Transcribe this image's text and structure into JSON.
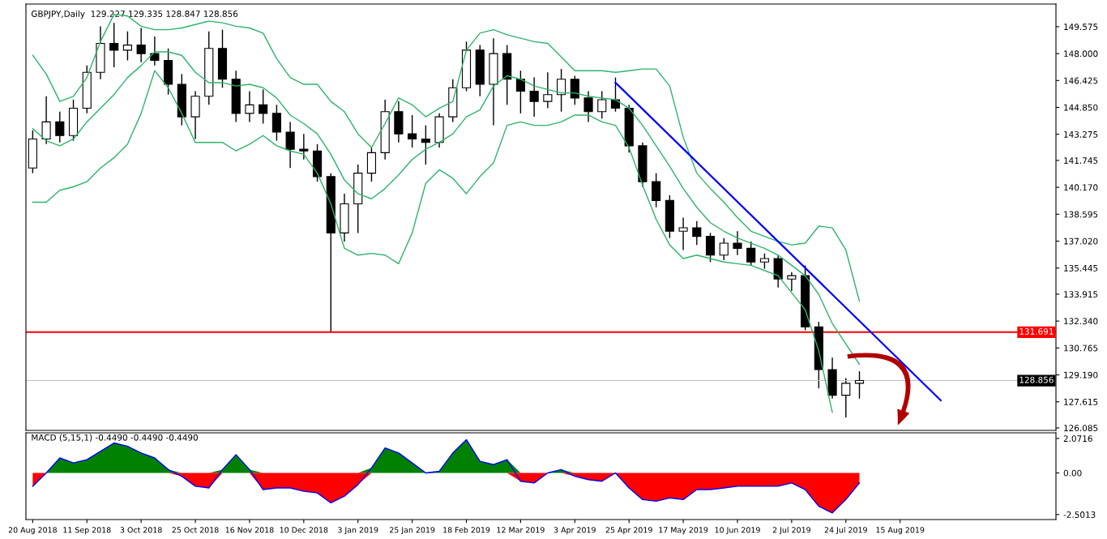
{
  "chart_data": [
    {
      "type": "candlestick",
      "title": "GBPJPY,Daily  129.227 129.335 128.847 128.856",
      "tick_labels": "y",
      "categories": [
        null,
        null,
        null,
        null,
        null,
        null,
        null,
        null,
        null,
        null,
        null,
        null,
        null,
        null,
        null,
        null,
        null,
        null,
        null,
        null,
        null,
        null,
        null,
        null,
        null,
        null,
        null,
        null,
        null,
        null,
        null,
        null,
        null,
        null,
        null,
        null,
        null,
        null,
        null,
        null,
        null,
        null,
        null,
        null,
        null,
        null,
        null,
        null,
        null,
        null,
        null,
        null,
        null,
        null,
        null,
        null,
        null,
        null,
        null,
        null,
        null,
        null,
        null,
        null,
        null,
        null,
        null,
        null,
        null,
        null,
        null,
        null,
        null,
        null,
        null,
        null
      ],
      "ohlc": [
        [
          141.3,
          143.5,
          141.0,
          143.0
        ],
        [
          143.0,
          145.5,
          142.7,
          144.0
        ],
        [
          144.0,
          144.6,
          142.8,
          143.2
        ],
        [
          143.2,
          145.3,
          142.9,
          144.8
        ],
        [
          144.8,
          147.3,
          144.5,
          146.9
        ],
        [
          146.9,
          149.6,
          146.5,
          148.6
        ],
        [
          148.6,
          149.8,
          147.2,
          148.2
        ],
        [
          148.2,
          149.3,
          147.6,
          148.5
        ],
        [
          148.5,
          149.5,
          147.5,
          148.0
        ],
        [
          148.0,
          149.0,
          147.3,
          147.6
        ],
        [
          147.6,
          148.3,
          145.6,
          146.2
        ],
        [
          146.2,
          146.8,
          143.8,
          144.3
        ],
        [
          144.3,
          145.8,
          143.0,
          145.5
        ],
        [
          145.5,
          149.3,
          145.0,
          148.3
        ],
        [
          148.3,
          149.4,
          146.0,
          146.5
        ],
        [
          146.5,
          147.0,
          144.0,
          144.5
        ],
        [
          144.5,
          145.8,
          144.0,
          145.0
        ],
        [
          145.0,
          145.9,
          143.9,
          144.5
        ],
        [
          144.5,
          145.0,
          142.9,
          143.4
        ],
        [
          143.4,
          144.0,
          141.3,
          142.4
        ],
        [
          142.4,
          143.3,
          141.8,
          142.3
        ],
        [
          142.3,
          142.7,
          140.5,
          140.8
        ],
        [
          140.8,
          141.0,
          131.691,
          137.5
        ],
        [
          137.5,
          139.8,
          137.0,
          139.2
        ],
        [
          139.2,
          141.5,
          137.5,
          141.0
        ],
        [
          141.0,
          142.5,
          140.5,
          142.2
        ],
        [
          142.2,
          145.3,
          141.8,
          144.6
        ],
        [
          144.6,
          145.2,
          142.8,
          143.3
        ],
        [
          143.3,
          144.4,
          142.5,
          143.0
        ],
        [
          143.0,
          143.8,
          141.5,
          142.8
        ],
        [
          142.8,
          144.5,
          142.5,
          144.3
        ],
        [
          144.3,
          146.5,
          144.0,
          146.0
        ],
        [
          146.0,
          148.7,
          145.8,
          148.2
        ],
        [
          148.2,
          148.5,
          145.5,
          146.2
        ],
        [
          146.2,
          148.9,
          143.8,
          148.0
        ],
        [
          148.0,
          148.5,
          145.0,
          146.5
        ],
        [
          146.5,
          147.0,
          144.5,
          145.8
        ],
        [
          145.8,
          146.6,
          144.3,
          145.2
        ],
        [
          145.2,
          146.9,
          144.8,
          145.6
        ],
        [
          145.6,
          147.1,
          144.6,
          146.5
        ],
        [
          146.5,
          146.7,
          145.0,
          145.4
        ],
        [
          145.4,
          145.8,
          144.0,
          144.6
        ],
        [
          144.6,
          145.8,
          144.2,
          145.3
        ],
        [
          145.3,
          146.6,
          144.6,
          144.8
        ],
        [
          144.8,
          145.0,
          142.2,
          142.6
        ],
        [
          142.6,
          142.8,
          140.2,
          140.5
        ],
        [
          140.5,
          141.0,
          139.0,
          139.4
        ],
        [
          139.4,
          139.7,
          137.2,
          137.6
        ],
        [
          137.6,
          138.4,
          136.5,
          137.8
        ],
        [
          137.8,
          138.2,
          136.8,
          137.3
        ],
        [
          137.3,
          137.5,
          135.8,
          136.2
        ],
        [
          136.2,
          137.2,
          135.9,
          136.9
        ],
        [
          136.9,
          137.6,
          136.2,
          136.6
        ],
        [
          136.6,
          137.0,
          135.6,
          135.8
        ],
        [
          135.8,
          136.3,
          135.4,
          136.0
        ],
        [
          136.0,
          136.2,
          134.3,
          134.8
        ],
        [
          134.8,
          135.2,
          134.1,
          135.0
        ],
        [
          135.0,
          135.6,
          131.8,
          132.0
        ],
        [
          132.0,
          132.3,
          128.4,
          129.5
        ],
        [
          129.5,
          130.2,
          127.8,
          128.0
        ],
        [
          128.0,
          129.0,
          126.7,
          128.7
        ],
        [
          128.7,
          129.4,
          127.8,
          128.856
        ],
        null,
        null,
        null,
        null,
        null,
        null,
        null,
        null,
        null,
        null,
        null,
        null,
        null,
        null
      ],
      "series": [
        {
          "type": "line",
          "color": "#2db36b",
          "values": [
            147.9,
            146.8,
            145.2,
            145.5,
            146.6,
            148.7,
            150.3,
            150.2,
            149.6,
            149.4,
            149.4,
            149.5,
            149.7,
            149.9,
            149.8,
            149.6,
            149.5,
            149.2,
            147.7,
            146.6,
            146.2,
            146.2,
            145.2,
            144.6,
            143.3,
            142.5,
            143.9,
            145.4,
            145.0,
            144.3,
            144.8,
            145.2,
            148.2,
            149.2,
            149.4,
            149.1,
            148.9,
            148.7,
            148.6,
            147.8,
            147.0,
            147.0,
            147.0,
            146.9,
            147.0,
            147.1,
            147.1,
            146.1,
            143.1,
            141.0,
            140.1,
            139.3,
            138.4,
            137.6,
            137.3,
            137.0,
            136.8,
            136.9,
            137.9,
            137.8,
            136.5,
            133.5,
            null,
            null,
            null,
            null,
            null,
            null,
            null,
            null,
            null,
            null,
            null,
            null,
            null,
            null
          ]
        },
        {
          "type": "line",
          "color": "#2db36b",
          "values": [
            143.6,
            142.9,
            142.6,
            143.0,
            144.0,
            144.8,
            145.6,
            146.6,
            147.3,
            148.1,
            148.1,
            147.9,
            146.9,
            146.3,
            146.3,
            146.1,
            146.2,
            146.0,
            145.4,
            144.4,
            143.9,
            143.3,
            142.1,
            140.6,
            139.8,
            139.5,
            140.1,
            140.9,
            141.8,
            142.4,
            142.8,
            143.3,
            144.3,
            144.7,
            146.1,
            146.7,
            146.5,
            146.1,
            145.9,
            145.7,
            145.7,
            145.5,
            145.4,
            145.3,
            144.8,
            143.8,
            142.6,
            141.4,
            140.1,
            139.0,
            138.1,
            137.6,
            137.2,
            136.9,
            136.6,
            136.2,
            135.6,
            135.0,
            133.9,
            132.2,
            131.0,
            129.8,
            null,
            null,
            null,
            null,
            null,
            null,
            null,
            null,
            null,
            null,
            null,
            null,
            null,
            null
          ]
        },
        {
          "type": "line",
          "color": "#2db36b",
          "values": [
            139.3,
            139.3,
            140.0,
            140.2,
            140.5,
            141.3,
            141.9,
            142.7,
            144.5,
            147.0,
            146.0,
            144.5,
            142.8,
            142.8,
            142.8,
            142.3,
            142.7,
            143.2,
            142.6,
            142.3,
            142.1,
            141.0,
            139.2,
            136.6,
            136.2,
            136.3,
            136.2,
            135.7,
            137.5,
            140.4,
            141.2,
            140.7,
            139.8,
            140.8,
            141.6,
            143.8,
            144.0,
            143.8,
            143.8,
            144.0,
            144.4,
            144.4,
            144.0,
            143.8,
            142.5,
            140.3,
            138.3,
            136.8,
            136.0,
            136.2,
            136.0,
            135.8,
            135.7,
            135.6,
            135.3,
            135.0,
            134.0,
            133.0,
            130.6,
            127.0,
            null,
            null,
            null,
            null,
            null,
            null,
            null,
            null,
            null,
            null,
            null,
            null,
            null,
            null,
            null,
            null
          ]
        },
        {
          "type": "line",
          "color": "#0000ff",
          "values": [
            null,
            null,
            null,
            null,
            null,
            null,
            null,
            null,
            null,
            null,
            null,
            null,
            null,
            null,
            null,
            null,
            null,
            null,
            null,
            null,
            null,
            null,
            null,
            null,
            null,
            null,
            null,
            null,
            null,
            null,
            null,
            null,
            null,
            null,
            null,
            null,
            null,
            null,
            null,
            null,
            null,
            null,
            null,
            146.3,
            null,
            null,
            null,
            null,
            null,
            null,
            null,
            null,
            null,
            null,
            null,
            null,
            null,
            null,
            null,
            null,
            null,
            null,
            null,
            null,
            null,
            null,
            null,
            127.7,
            null,
            null,
            null,
            null,
            null,
            null,
            null,
            null
          ]
        }
      ],
      "ylim": [
        125.94,
        150.9
      ],
      "yticks": [
        149.575,
        {
          "value": 148,
          "label": "148.000"
        },
        146.425,
        {
          "value": 144.85,
          "label": "144.850"
        },
        143.275,
        141.745,
        {
          "value": 140.17,
          "label": "140.170"
        },
        138.595,
        {
          "value": 137.02,
          "label": "137.020"
        },
        135.445,
        133.915,
        {
          "value": 132.34,
          "label": "132.340"
        },
        130.765,
        {
          "value": 129.19,
          "label": "129.190"
        },
        127.615,
        126.085
      ],
      "ref_lines": [
        {
          "axis": "y",
          "value": 131.691,
          "label": "131.691",
          "color": "#ff0000"
        },
        {
          "axis": "y",
          "value": 128.856,
          "label": "128.856",
          "color": "#c0c0c0"
        }
      ]
    },
    {
      "type": "area",
      "title": "MACD (5,15,1) -0.4490 -0.4490 -0.4490",
      "categories": [
        "20 Aug 2018",
        null,
        null,
        null,
        "11 Sep 2018",
        null,
        null,
        null,
        "3 Oct 2018",
        null,
        null,
        null,
        "25 Oct 2018",
        null,
        null,
        null,
        "16 Nov 2018",
        null,
        null,
        null,
        "10 Dec 2018",
        null,
        null,
        null,
        "3 Jan 2019",
        null,
        null,
        null,
        "25 Jan 2019",
        null,
        null,
        null,
        "18 Feb 2019",
        null,
        null,
        null,
        "12 Mar 2019",
        null,
        null,
        null,
        "3 Apr 2019",
        null,
        null,
        null,
        "25 Apr 2019",
        null,
        null,
        null,
        "17 May 2019",
        null,
        null,
        null,
        "10 Jun 2019",
        null,
        null,
        null,
        "2 Jul 2019",
        null,
        null,
        null,
        "24 Jul 2019",
        null,
        null,
        null,
        "15 Aug 2019",
        null,
        null,
        null,
        null,
        null,
        null,
        null,
        null,
        null,
        null,
        null
      ],
      "series": [
        {
          "type": "area",
          "color": "#008000",
          "values": [
            0,
            0,
            0.9,
            0.6,
            0.8,
            1.3,
            1.8,
            1.6,
            1.2,
            0.9,
            0.2,
            0,
            0,
            0,
            0.2,
            1.1,
            0.2,
            0,
            0,
            0,
            0,
            0,
            0,
            0,
            0,
            0.3,
            1.5,
            1.2,
            0.6,
            0,
            0.1,
            1.2,
            2.0,
            0.7,
            0.5,
            0.8,
            0,
            0,
            0,
            0.2,
            0,
            0,
            0,
            0,
            0,
            0,
            0,
            0,
            0,
            0,
            0,
            0,
            0,
            0,
            0,
            0,
            0,
            0,
            0,
            0,
            0,
            0,
            null,
            null,
            null,
            null,
            null,
            null,
            null,
            null,
            null,
            null,
            null,
            null,
            null,
            null
          ]
        },
        {
          "type": "area",
          "color": "#ff0000",
          "values": [
            -0.8,
            0,
            0,
            0,
            0,
            0,
            0,
            0,
            0,
            0,
            0,
            -0.2,
            -0.8,
            -0.9,
            0,
            0,
            0,
            -1.0,
            -0.9,
            -0.9,
            -1.1,
            -1.2,
            -1.8,
            -1.4,
            -0.7,
            0,
            0,
            0,
            0,
            0,
            0,
            0,
            0,
            0,
            0,
            0,
            -0.5,
            -0.6,
            0,
            0,
            -0.2,
            -0.4,
            -0.5,
            0,
            -0.9,
            -1.6,
            -1.7,
            -1.5,
            -1.6,
            -1.0,
            -1.0,
            -0.9,
            -0.8,
            -0.8,
            -0.8,
            -0.8,
            -0.6,
            -1.0,
            -2.0,
            -2.4,
            -1.6,
            -0.6,
            null,
            null,
            null,
            null,
            null,
            null,
            null,
            null,
            null,
            null,
            null,
            null,
            null,
            null
          ]
        },
        {
          "type": "line",
          "color": "#0000ff",
          "values": [
            -0.8,
            0,
            0.9,
            0.6,
            0.8,
            1.3,
            1.8,
            1.6,
            1.2,
            0.9,
            0.2,
            -0.2,
            -0.8,
            -0.9,
            0.2,
            1.1,
            0.2,
            -1.0,
            -0.9,
            -0.9,
            -1.1,
            -1.2,
            -1.8,
            -1.4,
            -0.7,
            0.3,
            1.5,
            1.2,
            0.6,
            0,
            0.1,
            1.2,
            2.0,
            0.7,
            0.5,
            0.8,
            -0.5,
            -0.6,
            0,
            0.2,
            -0.2,
            -0.4,
            -0.5,
            0,
            -0.9,
            -1.6,
            -1.7,
            -1.5,
            -1.6,
            -1.0,
            -1.0,
            -0.9,
            -0.8,
            -0.8,
            -0.8,
            -0.8,
            -0.6,
            -1.0,
            -2.0,
            -2.4,
            -1.6,
            -0.6,
            null,
            null,
            null,
            null,
            null,
            null,
            null,
            null,
            null,
            null,
            null,
            null,
            null,
            null
          ]
        }
      ],
      "ylim": [
        -2.8,
        2.41
      ],
      "yticks": [
        2.0716,
        {
          "value": 0,
          "label": "0.00"
        },
        -2.5013
      ]
    }
  ]
}
